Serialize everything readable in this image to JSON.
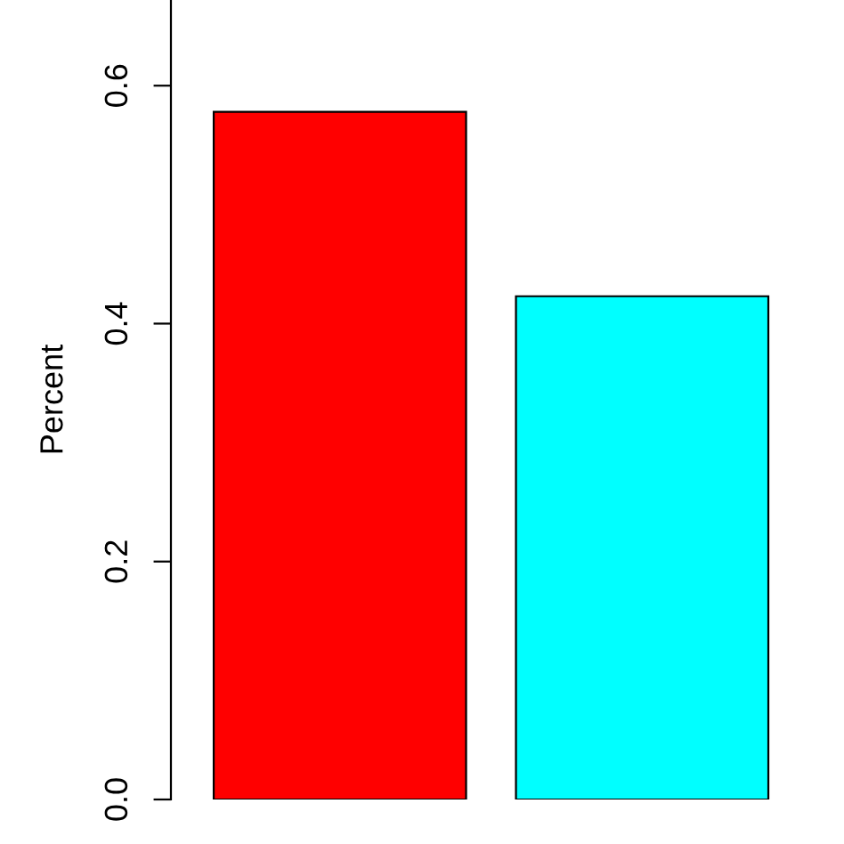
{
  "chart_data": {
    "type": "bar",
    "ylabel": "Percent",
    "categories": [
      null,
      null
    ],
    "values": [
      0.578,
      0.423
    ],
    "colors": [
      "#ff0000",
      "#00ffff"
    ],
    "ylim": [
      0,
      0.672
    ],
    "yticks": [
      {
        "value": 0.0,
        "label": "0.0"
      },
      {
        "value": 0.2,
        "label": "0.2"
      },
      {
        "value": 0.4,
        "label": "0.4"
      },
      {
        "value": 0.6,
        "label": "0.6"
      }
    ],
    "grid": false,
    "legend": false
  }
}
